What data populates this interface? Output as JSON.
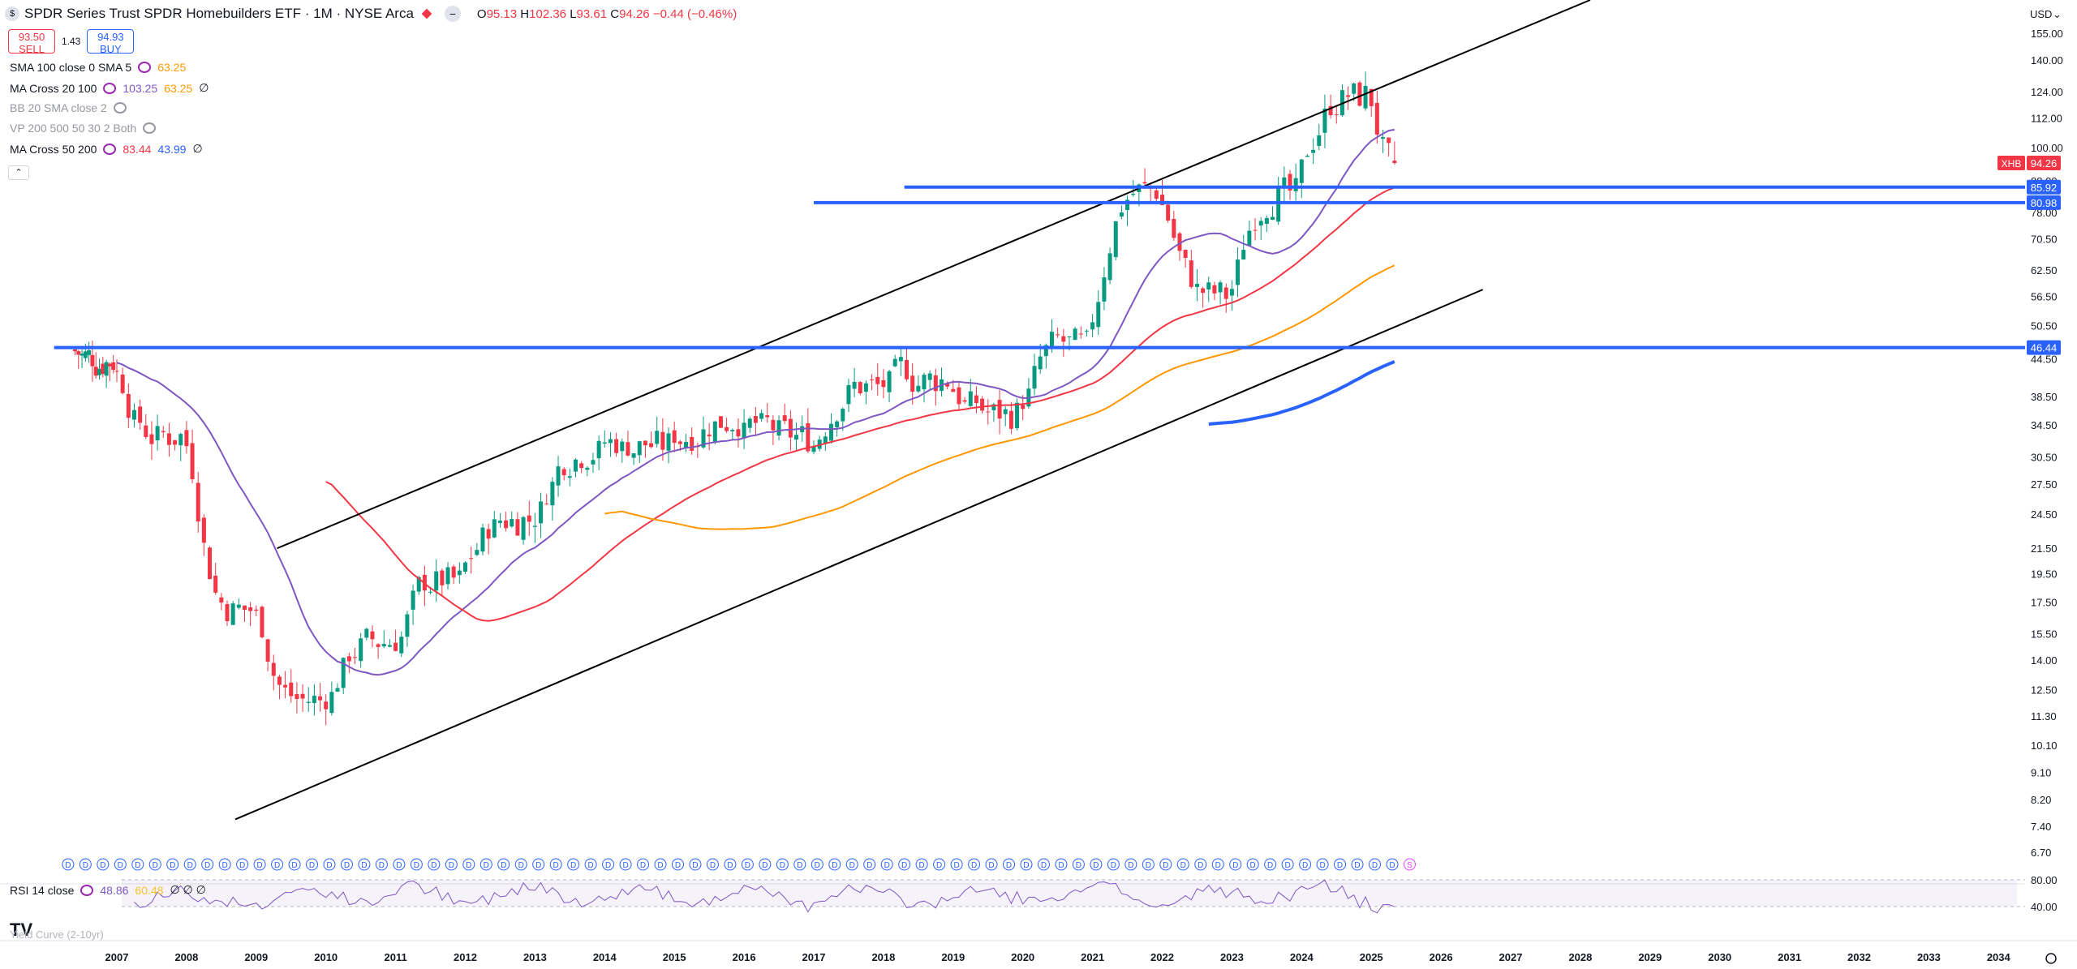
{
  "header": {
    "symbol_icon": "$",
    "title": "SPDR Series Trust SPDR Homebuilders ETF · 1M · NYSE Arca",
    "ohlc": {
      "o_label": "O",
      "o": "95.13",
      "h_label": "H",
      "h": "102.36",
      "l_label": "L",
      "l": "93.61",
      "c_label": "C",
      "c": "94.26",
      "change": "−0.44 (−0.46%)"
    }
  },
  "trade": {
    "sell_price": "93.50",
    "sell_label": "SELL",
    "spread": "1.43",
    "buy_price": "94.93",
    "buy_label": "BUY"
  },
  "indicators": [
    {
      "name": "SMA 100 close 0 SMA 5",
      "values": [
        "63.25"
      ],
      "colors": [
        "#ff9800"
      ],
      "dim": false
    },
    {
      "name": "MA Cross 20 100",
      "values": [
        "103.25",
        "63.25",
        "∅"
      ],
      "colors": [
        "#7e57c2",
        "#ff9800",
        "#131722"
      ],
      "dim": false
    },
    {
      "name": "BB 20 SMA close 2",
      "values": [],
      "colors": [],
      "dim": true
    },
    {
      "name": "VP 200 500 50 30 2 Both",
      "values": [],
      "colors": [],
      "dim": true
    },
    {
      "name": "MA Cross 50 200",
      "values": [
        "83.44",
        "43.99",
        "∅"
      ],
      "colors": [
        "#f23645",
        "#2962ff",
        "#131722"
      ],
      "dim": false
    }
  ],
  "rsi_legend": {
    "name": "RSI 14 close",
    "v1": "48.86",
    "v2": "60.48",
    "v3": "∅ ∅ ∅"
  },
  "yield_label": "Yield Curve (2-10yr)",
  "logo": "TV",
  "currency": "USD",
  "price_axis": {
    "ticks": [
      "155.00",
      "140.00",
      "124.00",
      "112.00",
      "100.00",
      "88.00",
      "78.00",
      "70.50",
      "62.50",
      "56.50",
      "50.50",
      "44.50",
      "38.50",
      "34.50",
      "30.50",
      "27.50",
      "24.50",
      "21.50",
      "19.50",
      "17.50",
      "15.50",
      "14.00",
      "12.50",
      "11.30",
      "10.10",
      "9.10",
      "8.20",
      "7.40",
      "6.70"
    ],
    "ticker_badge": "XHB",
    "last_price": "94.26",
    "levels": [
      "85.92",
      "80.98",
      "46.44"
    ]
  },
  "rsi_axis": [
    "80.00",
    "40.00"
  ],
  "time_axis": [
    "2007",
    "2008",
    "2009",
    "2010",
    "2011",
    "2012",
    "2013",
    "2014",
    "2015",
    "2016",
    "2017",
    "2018",
    "2019",
    "2020",
    "2021",
    "2022",
    "2023",
    "2024",
    "2025",
    "2026",
    "2027",
    "2028",
    "2029",
    "2030",
    "2031",
    "2032",
    "2033",
    "2034"
  ],
  "dividend_marker": "D",
  "split_marker": "S",
  "chart_data": {
    "type": "candlestick",
    "interval": "1M",
    "scale": "log",
    "years": [
      2006,
      2007,
      2008,
      2009,
      2010,
      2011,
      2012,
      2013,
      2014,
      2015,
      2016,
      2017,
      2018,
      2019,
      2020,
      2021,
      2022,
      2023,
      2024,
      2025
    ],
    "close_by_year_approx": [
      44,
      33,
      17,
      12,
      15,
      19,
      24,
      31,
      32,
      35,
      33,
      40,
      41,
      36,
      47,
      85,
      57,
      84,
      122,
      94.26
    ],
    "last": {
      "open": 95.13,
      "high": 102.36,
      "low": 93.61,
      "close": 94.26
    },
    "horizontal_levels": [
      85.92,
      80.98,
      46.44
    ],
    "ma_values": {
      "ma20": 103.25,
      "ma50": 83.44,
      "ma100": 63.25,
      "ma200": 43.99
    },
    "rsi": 48.86,
    "colors": {
      "up": "#089981",
      "down": "#f23645",
      "ma20": "#7e57c2",
      "ma50": "#f23645",
      "ma100": "#ff9800",
      "ma200": "#2962ff",
      "levels": "#2962ff",
      "channel": "#000000"
    }
  }
}
